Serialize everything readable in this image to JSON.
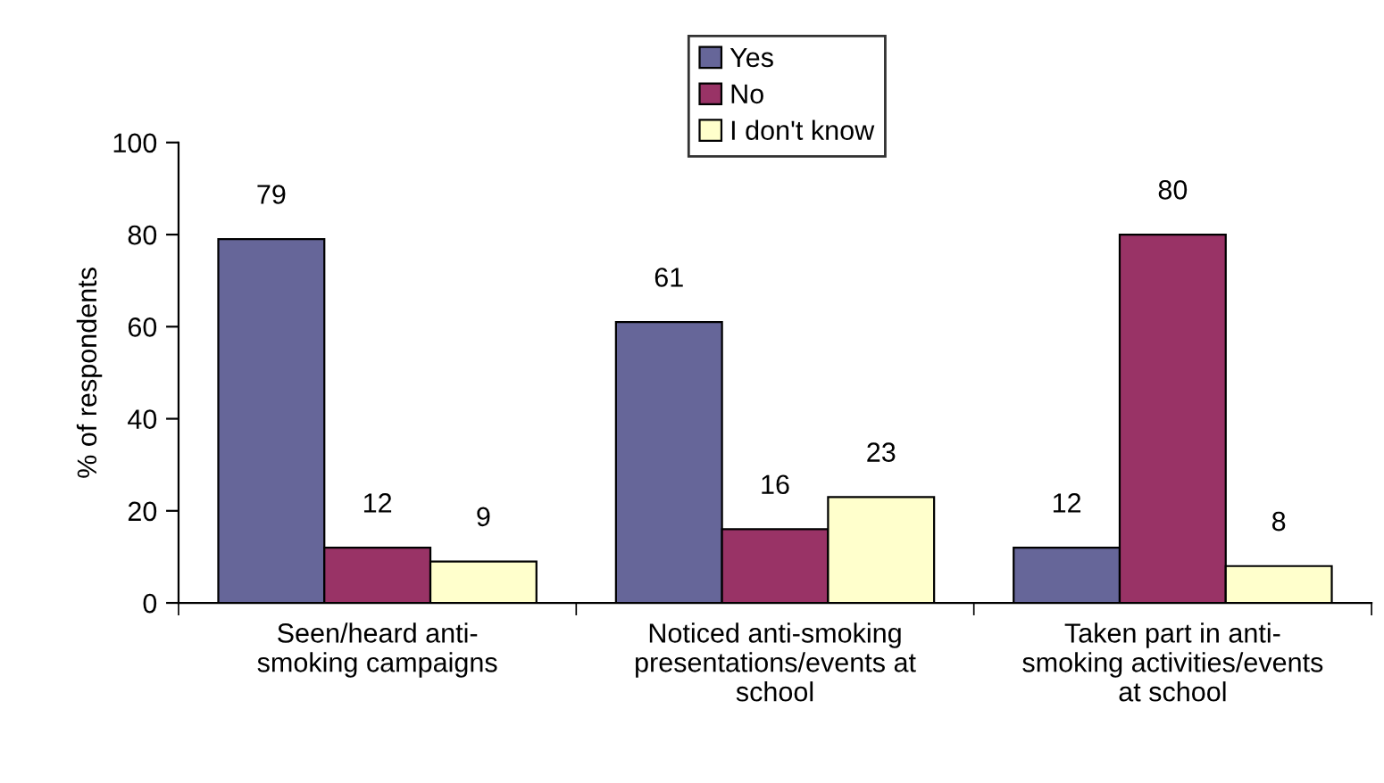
{
  "chart_data": {
    "type": "bar",
    "ylabel": "% of respondents",
    "categories": [
      "Seen/heard anti-\nsmoking campaigns",
      "Noticed anti-smoking\npresentations/events at\nschool",
      "Taken part in anti-\nsmoking activities/events\nat school"
    ],
    "series": [
      {
        "name": "Yes",
        "color": "#666699",
        "values": [
          79,
          61,
          12
        ]
      },
      {
        "name": "No",
        "color": "#993366",
        "values": [
          12,
          16,
          80
        ]
      },
      {
        "name": "I don't know",
        "color": "#ffffcc",
        "values": [
          9,
          23,
          8
        ]
      }
    ],
    "ylim": [
      0,
      100
    ],
    "yticks": [
      0,
      20,
      40,
      60,
      80,
      100
    ],
    "data_labels": true,
    "legend": "top",
    "grid": false
  }
}
